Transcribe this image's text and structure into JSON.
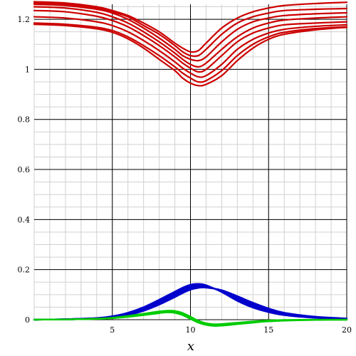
{
  "chart_data": {
    "type": "line",
    "title": "",
    "xlabel": "x",
    "ylabel": "",
    "xlim": [
      0,
      20
    ],
    "ylim": [
      0,
      1.26
    ],
    "x_ticks": [
      {
        "value": 5,
        "label": "5"
      },
      {
        "value": 10,
        "label": "10"
      },
      {
        "value": 15,
        "label": "15"
      },
      {
        "value": 20,
        "label": "20"
      }
    ],
    "y_ticks": [
      {
        "value": 0,
        "label": "0"
      },
      {
        "value": 0.2,
        "label": "0.2"
      },
      {
        "value": 0.4,
        "label": "0.4"
      },
      {
        "value": 0.6,
        "label": "0.6"
      },
      {
        "value": 0.8,
        "label": "0.8"
      },
      {
        "value": 1,
        "label": "1"
      },
      {
        "value": 1.2,
        "label": "1.2"
      }
    ],
    "x_minor_step": 1,
    "y_minor_step": 0.05,
    "grid": true,
    "legend": "none",
    "series_groups": [
      {
        "color": "#cc0000",
        "x": [
          0,
          2,
          4,
          5,
          6,
          7,
          8,
          9,
          9.5,
          10,
          10.5,
          11,
          12,
          13,
          14,
          15,
          16,
          18,
          20
        ],
        "series": [
          {
            "y": [
              1.27,
              1.265,
              1.25,
              1.235,
              1.215,
              1.185,
              1.15,
              1.105,
              1.085,
              1.07,
              1.075,
              1.105,
              1.165,
              1.205,
              1.23,
              1.245,
              1.255,
              1.263,
              1.268
            ]
          },
          {
            "y": [
              1.265,
              1.26,
              1.245,
              1.23,
              1.21,
              1.175,
              1.14,
              1.095,
              1.07,
              1.055,
              1.055,
              1.08,
              1.14,
              1.185,
              1.21,
              1.225,
              1.235,
              1.24,
              1.243
            ]
          },
          {
            "y": [
              1.26,
              1.255,
              1.24,
              1.225,
              1.2,
              1.165,
              1.125,
              1.08,
              1.055,
              1.04,
              1.035,
              1.05,
              1.11,
              1.16,
              1.19,
              1.205,
              1.215,
              1.222,
              1.226
            ]
          },
          {
            "y": [
              1.25,
              1.245,
              1.228,
              1.21,
              1.185,
              1.15,
              1.11,
              1.065,
              1.04,
              1.02,
              1.01,
              1.025,
              1.08,
              1.13,
              1.165,
              1.185,
              1.197,
              1.205,
              1.21
            ]
          },
          {
            "y": [
              1.235,
              1.23,
              1.212,
              1.195,
              1.17,
              1.135,
              1.095,
              1.05,
              1.025,
              1.005,
              0.99,
              1.0,
              1.055,
              1.11,
              1.145,
              1.165,
              1.178,
              1.185,
              1.19
            ]
          },
          {
            "y": [
              1.21,
              1.205,
              1.19,
              1.175,
              1.15,
              1.115,
              1.075,
              1.03,
              1.005,
              0.985,
              0.97,
              0.975,
              1.02,
              1.08,
              1.12,
              1.145,
              1.16,
              1.172,
              1.178
            ]
          },
          {
            "y": [
              1.185,
              1.18,
              1.168,
              1.155,
              1.13,
              1.095,
              1.055,
              1.01,
              0.985,
              0.965,
              0.95,
              0.955,
              0.995,
              1.055,
              1.1,
              1.13,
              1.148,
              1.163,
              1.17
            ]
          },
          {
            "y": [
              1.18,
              1.175,
              1.162,
              1.148,
              1.122,
              1.085,
              1.04,
              0.995,
              0.965,
              0.945,
              0.935,
              0.94,
              0.975,
              1.035,
              1.085,
              1.12,
              1.14,
              1.158,
              1.168
            ]
          }
        ]
      },
      {
        "color": "#0000cc",
        "x": [
          0,
          2,
          4,
          5,
          6,
          7,
          8,
          9,
          9.5,
          10,
          10.5,
          11,
          12,
          13,
          14,
          15,
          16,
          18,
          20
        ],
        "series": [
          {
            "y": [
              0.0,
              0.002,
              0.007,
              0.014,
              0.028,
              0.05,
              0.08,
              0.112,
              0.128,
              0.14,
              0.143,
              0.138,
              0.11,
              0.075,
              0.048,
              0.03,
              0.018,
              0.007,
              0.002
            ]
          },
          {
            "y": [
              0.0,
              0.002,
              0.006,
              0.013,
              0.026,
              0.047,
              0.076,
              0.108,
              0.124,
              0.136,
              0.14,
              0.136,
              0.112,
              0.08,
              0.052,
              0.033,
              0.02,
              0.008,
              0.003
            ]
          },
          {
            "y": [
              0.0,
              0.002,
              0.006,
              0.012,
              0.024,
              0.044,
              0.072,
              0.104,
              0.12,
              0.132,
              0.137,
              0.134,
              0.113,
              0.084,
              0.056,
              0.036,
              0.022,
              0.009,
              0.003
            ]
          },
          {
            "y": [
              0.0,
              0.002,
              0.005,
              0.011,
              0.022,
              0.041,
              0.068,
              0.1,
              0.116,
              0.128,
              0.134,
              0.132,
              0.115,
              0.088,
              0.06,
              0.039,
              0.024,
              0.01,
              0.004
            ]
          },
          {
            "y": [
              0.0,
              0.001,
              0.005,
              0.01,
              0.02,
              0.038,
              0.064,
              0.095,
              0.111,
              0.124,
              0.13,
              0.13,
              0.116,
              0.091,
              0.064,
              0.042,
              0.026,
              0.011,
              0.004
            ]
          },
          {
            "y": [
              0.0,
              0.001,
              0.004,
              0.009,
              0.018,
              0.035,
              0.06,
              0.09,
              0.106,
              0.12,
              0.127,
              0.128,
              0.118,
              0.094,
              0.068,
              0.045,
              0.028,
              0.012,
              0.005
            ]
          }
        ]
      },
      {
        "color": "#00cc00",
        "x": [
          0,
          2,
          4,
          5,
          6,
          7,
          8,
          8.5,
          9,
          9.5,
          10,
          10.5,
          11,
          11.5,
          12,
          13,
          14,
          15,
          16,
          18,
          20
        ],
        "series": [
          {
            "y": [
              0.0,
              0.001,
              0.004,
              0.008,
              0.015,
              0.024,
              0.033,
              0.036,
              0.035,
              0.027,
              0.012,
              -0.004,
              -0.014,
              -0.018,
              -0.017,
              -0.012,
              -0.007,
              -0.003,
              -0.001,
              0.0,
              0.0
            ]
          },
          {
            "y": [
              0.0,
              0.001,
              0.004,
              0.007,
              0.013,
              0.022,
              0.03,
              0.033,
              0.032,
              0.024,
              0.009,
              -0.007,
              -0.017,
              -0.021,
              -0.02,
              -0.014,
              -0.009,
              -0.005,
              -0.002,
              0.0,
              0.0
            ]
          },
          {
            "y": [
              0.0,
              0.001,
              0.003,
              0.006,
              0.012,
              0.02,
              0.028,
              0.031,
              0.03,
              0.021,
              0.006,
              -0.01,
              -0.019,
              -0.023,
              -0.022,
              -0.016,
              -0.01,
              -0.006,
              -0.003,
              -0.001,
              0.0
            ]
          },
          {
            "y": [
              0.0,
              0.001,
              0.003,
              0.006,
              0.011,
              0.018,
              0.026,
              0.029,
              0.027,
              0.018,
              0.003,
              -0.012,
              -0.021,
              -0.025,
              -0.024,
              -0.018,
              -0.012,
              -0.007,
              -0.004,
              -0.001,
              0.0
            ]
          }
        ]
      }
    ]
  }
}
